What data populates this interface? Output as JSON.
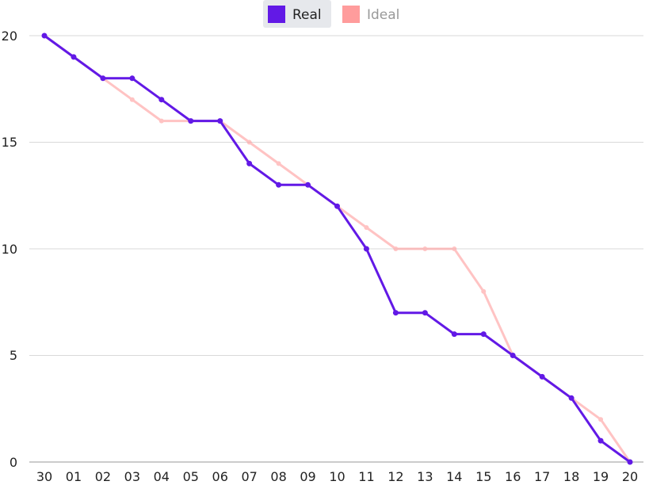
{
  "chart_data": {
    "type": "line",
    "categories": [
      "30",
      "01",
      "02",
      "03",
      "04",
      "05",
      "06",
      "07",
      "08",
      "09",
      "10",
      "11",
      "12",
      "13",
      "14",
      "15",
      "16",
      "17",
      "18",
      "19",
      "20"
    ],
    "ylim": [
      0,
      20
    ],
    "y_ticks": [
      "0",
      "5",
      "10",
      "15",
      "20"
    ],
    "grid": true,
    "legend_position": "top-center",
    "series": [
      {
        "name": "Real",
        "color": "#6219E6",
        "values": [
          20,
          19,
          18,
          18,
          17,
          16,
          16,
          14,
          13,
          13,
          12,
          10,
          7,
          7,
          6,
          6,
          5,
          4,
          3,
          1,
          0
        ]
      },
      {
        "name": "Ideal",
        "color": "#FF9C9C",
        "values": [
          20,
          19,
          18,
          17,
          16,
          16,
          16,
          15,
          14,
          13,
          12,
          11,
          10,
          10,
          10,
          8,
          5,
          4,
          3,
          2,
          0
        ]
      }
    ]
  }
}
